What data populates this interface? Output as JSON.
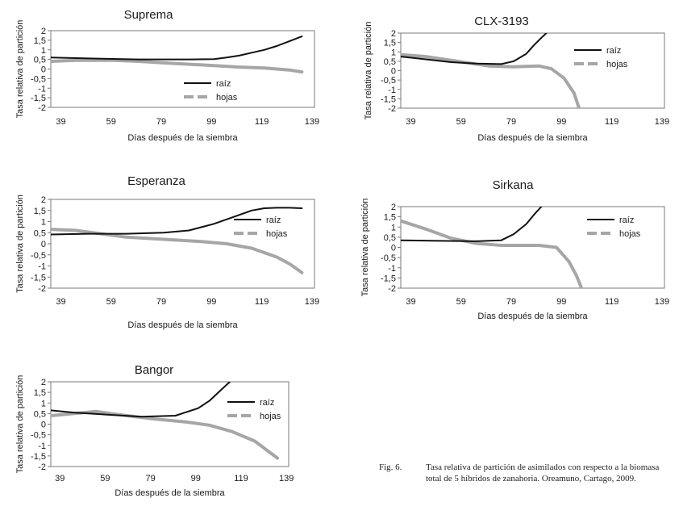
{
  "chart_data": [
    {
      "type": "line",
      "title": "Suprema",
      "xlabel": "Días después de la siembra",
      "ylabel": "Tasa relativa de partición",
      "xlim": [
        35,
        140
      ],
      "ylim": [
        -2,
        2
      ],
      "xticks": [
        39,
        59,
        79,
        99,
        119,
        139
      ],
      "yticks": [
        "2",
        "1,5",
        "1",
        "0,5",
        "0",
        "-0,5",
        "-1",
        "-1,5",
        "-2"
      ],
      "legend_position": "right",
      "series": [
        {
          "name": "raíz",
          "color": "#111111",
          "x": [
            35,
            50,
            70,
            90,
            100,
            105,
            110,
            115,
            120,
            125,
            130,
            135
          ],
          "y": [
            0.6,
            0.55,
            0.5,
            0.5,
            0.52,
            0.6,
            0.7,
            0.85,
            1.0,
            1.2,
            1.45,
            1.7
          ]
        },
        {
          "name": "hojas",
          "color": "#a6a6a6",
          "x": [
            35,
            45,
            60,
            70,
            80,
            90,
            100,
            110,
            120,
            130,
            135
          ],
          "y": [
            0.4,
            0.45,
            0.45,
            0.4,
            0.32,
            0.25,
            0.18,
            0.1,
            0.05,
            -0.05,
            -0.15
          ]
        }
      ]
    },
    {
      "type": "line",
      "title": "CLX-3193",
      "xlabel": "Días después de la siembra",
      "ylabel": "Tasa relativa de partición",
      "xlim": [
        35,
        140
      ],
      "ylim": [
        -2,
        2
      ],
      "xticks": [
        39,
        59,
        79,
        99,
        119,
        139
      ],
      "yticks": [
        "2",
        "1,5",
        "1",
        "0,5",
        "0",
        "-0,5",
        "-1",
        "-1,5",
        "-2"
      ],
      "legend_position": "right",
      "series": [
        {
          "name": "raíz",
          "color": "#111111",
          "x": [
            35,
            45,
            55,
            65,
            75,
            80,
            85,
            88,
            91,
            93
          ],
          "y": [
            0.75,
            0.6,
            0.45,
            0.38,
            0.35,
            0.5,
            0.9,
            1.35,
            1.75,
            2.0
          ]
        },
        {
          "name": "hojas",
          "color": "#a6a6a6",
          "x": [
            35,
            45,
            55,
            65,
            70,
            80,
            90,
            95,
            100,
            104,
            106
          ],
          "y": [
            0.85,
            0.75,
            0.55,
            0.35,
            0.25,
            0.2,
            0.25,
            0.1,
            -0.4,
            -1.2,
            -2.0
          ]
        }
      ]
    },
    {
      "type": "line",
      "title": "Esperanza",
      "xlabel": "Días después de la siembra",
      "ylabel": "Tasa relativa de partición",
      "xlim": [
        35,
        140
      ],
      "ylim": [
        -2,
        2
      ],
      "xticks": [
        39,
        59,
        79,
        99,
        119,
        139
      ],
      "yticks": [
        "2",
        "1,5",
        "1",
        "0,5",
        "0",
        "-0,5",
        "-1",
        "-1,5",
        "-2"
      ],
      "legend_position": "right",
      "series": [
        {
          "name": "raíz",
          "color": "#111111",
          "x": [
            35,
            50,
            65,
            80,
            90,
            100,
            110,
            115,
            120,
            125,
            130,
            135
          ],
          "y": [
            0.42,
            0.45,
            0.45,
            0.5,
            0.6,
            0.9,
            1.3,
            1.5,
            1.6,
            1.62,
            1.62,
            1.6
          ]
        },
        {
          "name": "hojas",
          "color": "#a6a6a6",
          "x": [
            35,
            45,
            55,
            65,
            80,
            95,
            105,
            115,
            125,
            130,
            135
          ],
          "y": [
            0.65,
            0.6,
            0.45,
            0.3,
            0.2,
            0.1,
            0.0,
            -0.2,
            -0.6,
            -0.9,
            -1.3
          ]
        }
      ]
    },
    {
      "type": "line",
      "title": "Sirkana",
      "xlabel": "Días después de la siembra",
      "ylabel": "Tasa relativa de partición",
      "xlim": [
        35,
        140
      ],
      "ylim": [
        -2,
        2
      ],
      "xticks": [
        39,
        59,
        79,
        99,
        119,
        139
      ],
      "yticks": [
        "2",
        "1,5",
        "1",
        "0,5",
        "0",
        "-0,5",
        "-1",
        "-1,5",
        "-2"
      ],
      "legend_position": "right",
      "series": [
        {
          "name": "raíz",
          "color": "#111111",
          "x": [
            35,
            50,
            65,
            75,
            80,
            85,
            88,
            91
          ],
          "y": [
            0.35,
            0.32,
            0.3,
            0.35,
            0.65,
            1.15,
            1.6,
            2.0
          ]
        },
        {
          "name": "hojas",
          "color": "#a6a6a6",
          "x": [
            35,
            45,
            55,
            65,
            75,
            90,
            97,
            102,
            105,
            107
          ],
          "y": [
            1.3,
            0.9,
            0.45,
            0.2,
            0.1,
            0.1,
            0.0,
            -0.7,
            -1.4,
            -2.0
          ]
        }
      ]
    },
    {
      "type": "line",
      "title": "Bangor",
      "xlabel": "Días después de la siembra",
      "ylabel": "Tasa relativa de partición",
      "xlim": [
        35,
        140
      ],
      "ylim": [
        -2,
        2
      ],
      "xticks": [
        39,
        59,
        79,
        99,
        119,
        139
      ],
      "yticks": [
        "2",
        "1,5",
        "1",
        "0,5",
        "0",
        "-0,5",
        "-1",
        "-1,5",
        "-2"
      ],
      "legend_position": "right",
      "series": [
        {
          "name": "raíz",
          "color": "#111111",
          "x": [
            35,
            45,
            60,
            75,
            90,
            100,
            105,
            110,
            114
          ],
          "y": [
            0.65,
            0.55,
            0.45,
            0.35,
            0.4,
            0.75,
            1.1,
            1.6,
            2.0
          ]
        },
        {
          "name": "hojas",
          "color": "#a6a6a6",
          "x": [
            35,
            45,
            55,
            65,
            80,
            95,
            105,
            115,
            125,
            130,
            135
          ],
          "y": [
            0.4,
            0.5,
            0.6,
            0.45,
            0.25,
            0.1,
            -0.05,
            -0.35,
            -0.8,
            -1.2,
            -1.6
          ]
        }
      ]
    }
  ],
  "caption": {
    "label": "Fig. 6.",
    "text": "Tasa relativa de partición de asimilados con respecto a la biomasa total de 5 híbridos de zanahoria. Oreamuno, Cartago, 2009."
  }
}
